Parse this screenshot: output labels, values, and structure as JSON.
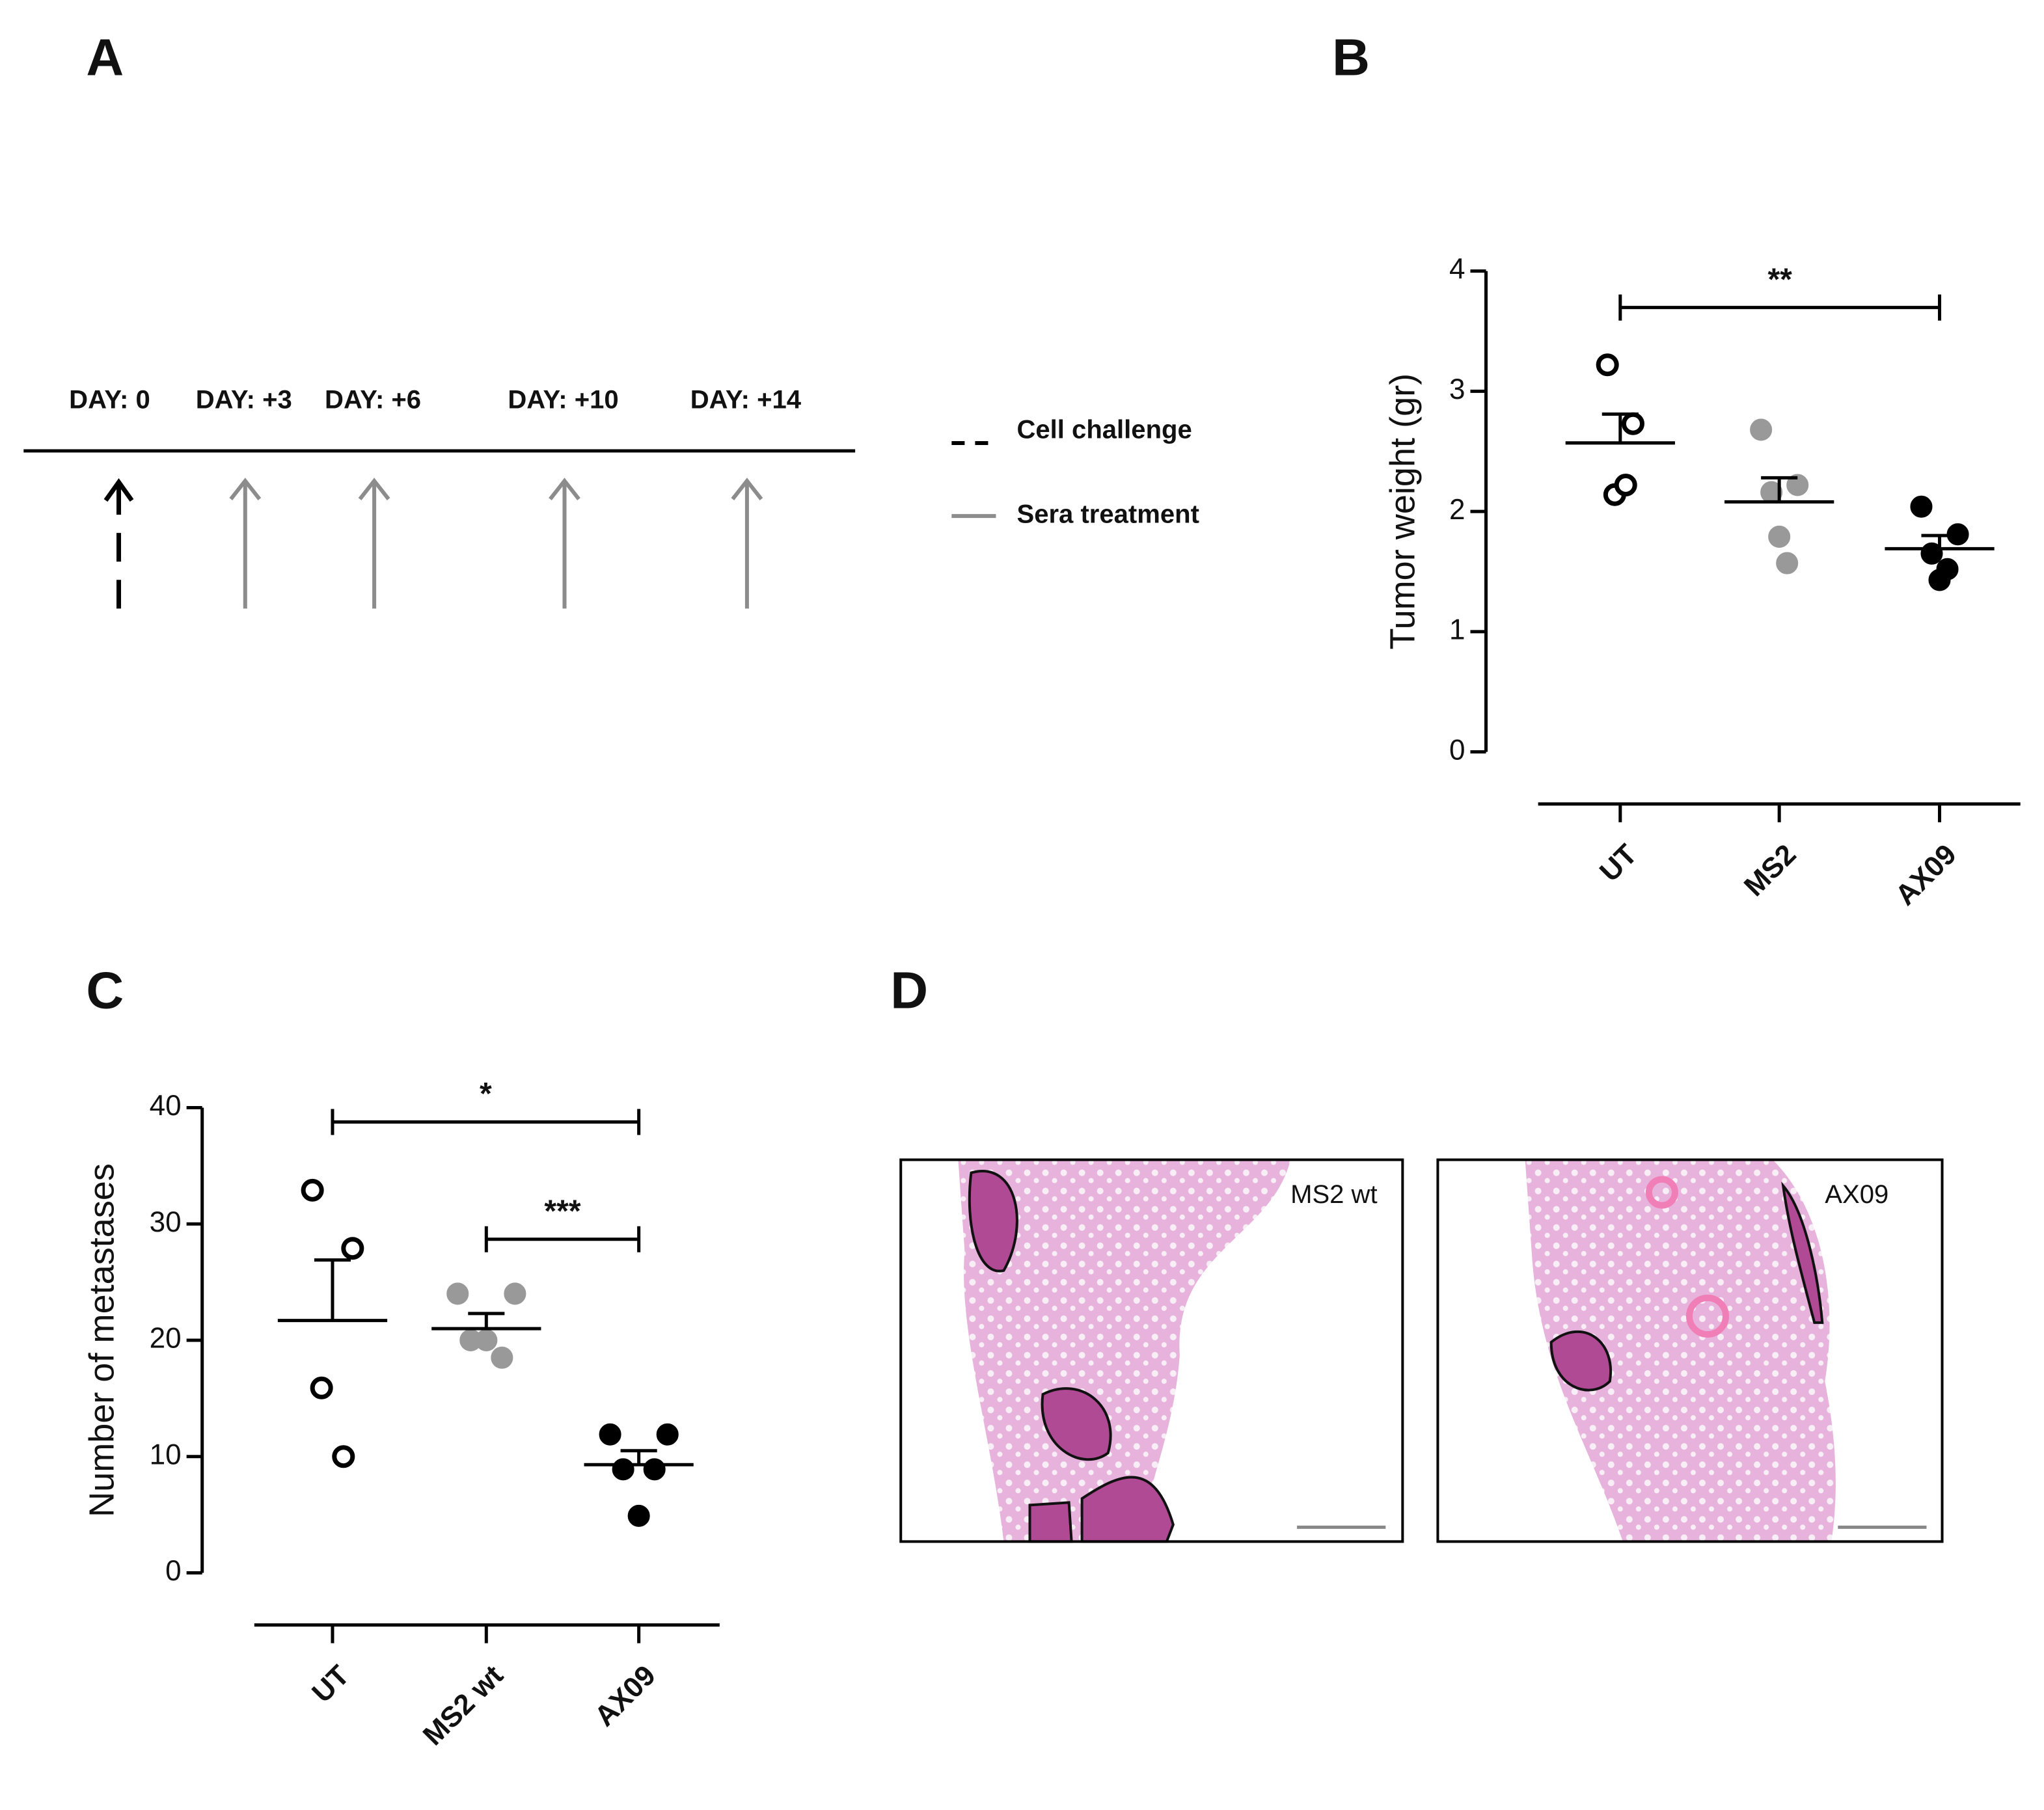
{
  "panel_labels": [
    "A",
    "B",
    "C",
    "D"
  ],
  "timeline": {
    "days": [
      "DAY: 0",
      "DAY: +3",
      "DAY: +6",
      "DAY: +10",
      "DAY: +14"
    ],
    "legend": [
      "Cell challenge",
      "Sera treatment"
    ]
  },
  "chart_data": [
    {
      "type": "strip",
      "ylabel": "Tumor weight (gr)",
      "categories": [
        "UT",
        "MS2",
        "AX09"
      ],
      "points": [
        [
          3.22,
          2.73,
          2.14,
          2.22
        ],
        [
          2.68,
          2.22,
          2.16,
          1.57,
          1.79
        ],
        [
          2.04,
          1.81,
          1.65,
          1.52,
          1.43
        ]
      ],
      "means": [
        2.57,
        2.08,
        1.69
      ],
      "errors": [
        0.24,
        0.2,
        0.11
      ],
      "point_colors": [
        "none",
        "#999999",
        "#000000"
      ],
      "ylim": [
        0,
        4
      ],
      "yticks": [
        0,
        1,
        2,
        3,
        4
      ],
      "comparisons": [
        {
          "groups": [
            "UT",
            "AX09"
          ],
          "label": "**"
        }
      ]
    },
    {
      "type": "strip",
      "ylabel": "Number of metastases",
      "categories": [
        "UT",
        "MS2 wt",
        "AX09"
      ],
      "points": [
        [
          32.9,
          27.9,
          15.9,
          10
        ],
        [
          24,
          24,
          20,
          18.5,
          20
        ],
        [
          11.9,
          11.9,
          8.9,
          8.9,
          4.9
        ]
      ],
      "means": [
        21.7,
        21,
        9.3
      ],
      "errors": [
        5.2,
        1.3,
        1.2
      ],
      "point_colors": [
        "none",
        "#999999",
        "#000000"
      ],
      "ylim": [
        0,
        40
      ],
      "yticks": [
        0,
        10,
        20,
        30,
        40
      ],
      "comparisons": [
        {
          "groups": [
            "UT",
            "AX09"
          ],
          "label": "*"
        },
        {
          "groups": [
            "MS2 wt",
            "AX09"
          ],
          "label": "***"
        }
      ]
    }
  ],
  "images": [
    {
      "label": "MS2 wt"
    },
    {
      "label": "AX09"
    }
  ]
}
